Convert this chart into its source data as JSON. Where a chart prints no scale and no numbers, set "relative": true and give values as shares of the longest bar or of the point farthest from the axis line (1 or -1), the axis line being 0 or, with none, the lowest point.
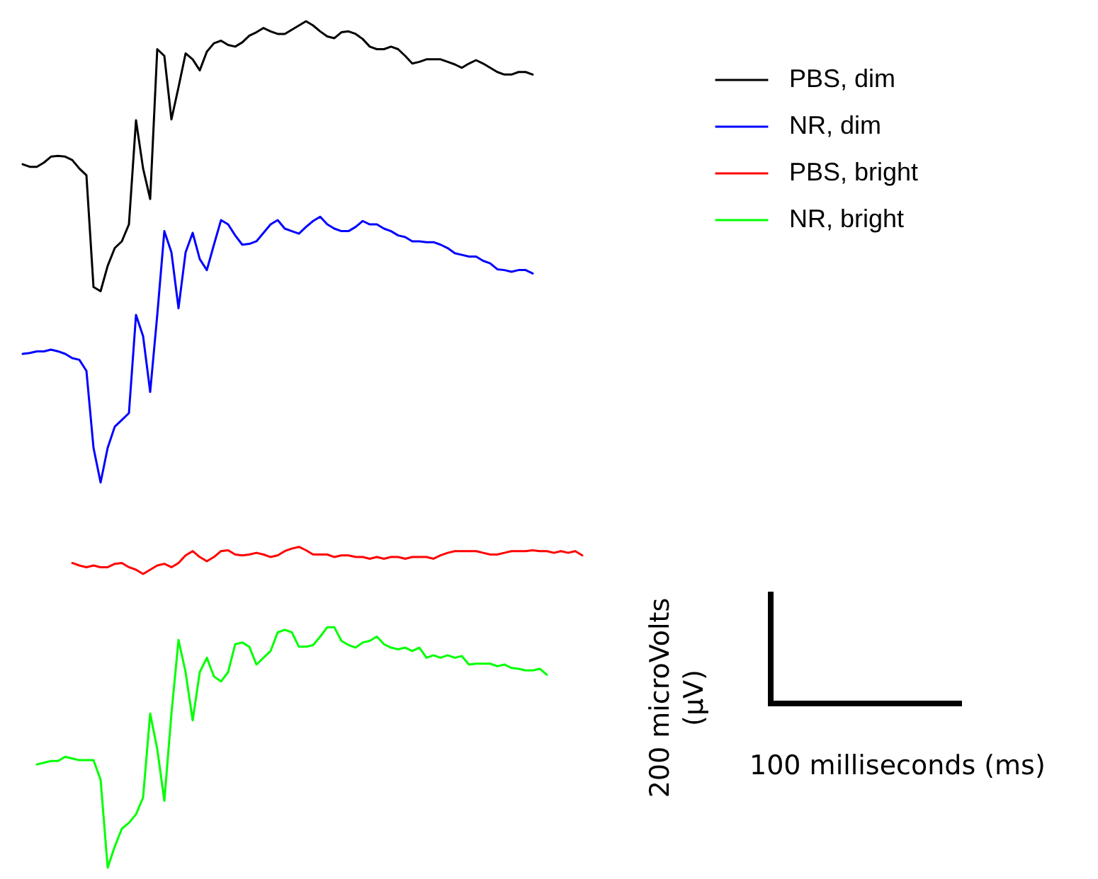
{
  "chart_data": {
    "type": "line",
    "relative": true,
    "legend": "right",
    "line_style": "solid",
    "marker": "none",
    "categories": [
      null,
      null,
      null,
      null,
      null,
      null,
      null,
      null,
      null,
      null,
      null,
      null,
      null,
      null,
      null,
      null,
      null,
      null,
      null,
      null,
      null,
      null,
      null,
      null,
      null,
      null,
      null,
      null,
      null,
      null,
      null,
      null,
      null,
      null,
      null,
      null,
      null,
      null,
      null,
      null,
      null,
      null,
      null,
      null,
      null,
      null,
      null,
      null,
      null,
      null,
      null,
      null,
      null,
      null,
      null,
      null,
      null,
      null,
      null,
      null,
      null,
      null,
      null,
      null,
      null,
      null,
      null,
      null,
      null,
      null,
      null,
      null,
      null,
      null,
      null,
      null,
      null,
      null,
      null,
      null
    ],
    "series": [
      {
        "name": "PBS, dim",
        "color": "#000000",
        "values": [
          0.831,
          0.828,
          0.828,
          0.833,
          0.84,
          0.841,
          0.84,
          0.836,
          0.826,
          0.818,
          0.686,
          0.681,
          0.711,
          0.732,
          0.74,
          0.76,
          0.883,
          0.826,
          0.79,
          0.967,
          0.959,
          0.884,
          0.922,
          0.962,
          0.955,
          0.942,
          0.964,
          0.974,
          0.977,
          0.972,
          0.97,
          0.975,
          0.983,
          0.987,
          0.992,
          0.988,
          0.985,
          0.985,
          0.99,
          0.995,
          1,
          0.995,
          0.988,
          0.982,
          0.98,
          0.987,
          0.988,
          0.985,
          0.979,
          0.97,
          0.967,
          0.967,
          0.97,
          0.967,
          0.959,
          0.95,
          0.952,
          0.955,
          0.955,
          0.955,
          0.952,
          0.949,
          0.945,
          0.95,
          0.954,
          0.95,
          0.945,
          0.94,
          0.937,
          0.937,
          0.94,
          0.94,
          0.937,
          null,
          null,
          null,
          null,
          null,
          null,
          null
        ]
      },
      {
        "name": "NR, dim",
        "color": "#0000ff",
        "values": [
          0.607,
          0.608,
          0.61,
          0.61,
          0.612,
          0.61,
          0.607,
          0.602,
          0.6,
          0.587,
          0.496,
          0.455,
          0.496,
          0.521,
          0.529,
          0.537,
          0.653,
          0.628,
          0.562,
          0.653,
          0.752,
          0.727,
          0.661,
          0.727,
          0.75,
          0.719,
          0.706,
          0.736,
          0.765,
          0.76,
          0.747,
          0.736,
          0.737,
          0.74,
          0.75,
          0.76,
          0.765,
          0.755,
          0.752,
          0.749,
          0.757,
          0.764,
          0.769,
          0.76,
          0.755,
          0.752,
          0.752,
          0.757,
          0.764,
          0.76,
          0.76,
          0.755,
          0.752,
          0.747,
          0.745,
          0.74,
          0.74,
          0.739,
          0.739,
          0.736,
          0.732,
          0.726,
          0.724,
          0.722,
          0.722,
          0.717,
          0.714,
          0.707,
          0.706,
          0.704,
          0.706,
          0.706,
          0.702,
          null,
          null,
          null,
          null,
          null,
          null,
          null
        ]
      },
      {
        "name": "PBS, bright",
        "color": "#ff0000",
        "values": [
          null,
          null,
          null,
          null,
          null,
          null,
          null,
          0.36,
          0.357,
          0.355,
          0.357,
          0.355,
          0.355,
          0.359,
          0.36,
          0.355,
          0.352,
          0.347,
          0.352,
          0.357,
          0.359,
          0.355,
          0.36,
          0.369,
          0.374,
          0.367,
          0.362,
          0.367,
          0.374,
          0.375,
          0.37,
          0.369,
          0.37,
          0.372,
          0.37,
          0.367,
          0.369,
          0.374,
          0.377,
          0.379,
          0.375,
          0.37,
          0.37,
          0.37,
          0.367,
          0.369,
          0.369,
          0.367,
          0.367,
          0.365,
          0.367,
          0.365,
          0.367,
          0.367,
          0.365,
          0.367,
          0.367,
          0.367,
          0.365,
          0.369,
          0.372,
          0.374,
          0.374,
          0.374,
          0.374,
          0.372,
          0.37,
          0.37,
          0.372,
          0.374,
          0.374,
          0.374,
          0.375,
          0.374,
          0.374,
          0.372,
          0.374,
          0.372,
          0.374,
          0.369
        ]
      },
      {
        "name": "NR, bright",
        "color": "#00ff00",
        "values": [
          null,
          null,
          0.122,
          0.124,
          0.126,
          0.126,
          0.131,
          0.129,
          0.127,
          0.127,
          0.127,
          0.104,
          0,
          0.025,
          0.046,
          0.053,
          0.063,
          0.083,
          0.182,
          0.14,
          0.079,
          0.182,
          0.269,
          0.231,
          0.174,
          0.231,
          0.248,
          0.226,
          0.22,
          0.231,
          0.264,
          0.266,
          0.261,
          0.24,
          0.248,
          0.256,
          0.278,
          0.281,
          0.278,
          0.261,
          0.261,
          0.263,
          0.273,
          0.284,
          0.284,
          0.268,
          0.263,
          0.26,
          0.266,
          0.268,
          0.273,
          0.264,
          0.26,
          0.258,
          0.26,
          0.256,
          0.26,
          0.248,
          0.251,
          0.248,
          0.251,
          0.248,
          0.25,
          0.24,
          0.241,
          0.241,
          0.241,
          0.238,
          0.24,
          0.236,
          0.235,
          0.233,
          0.233,
          0.235,
          0.228,
          null,
          null,
          null,
          null,
          null
        ]
      }
    ],
    "annotations": [
      "200 microVolts (µV)",
      "100 milliseconds (ms)"
    ]
  }
}
